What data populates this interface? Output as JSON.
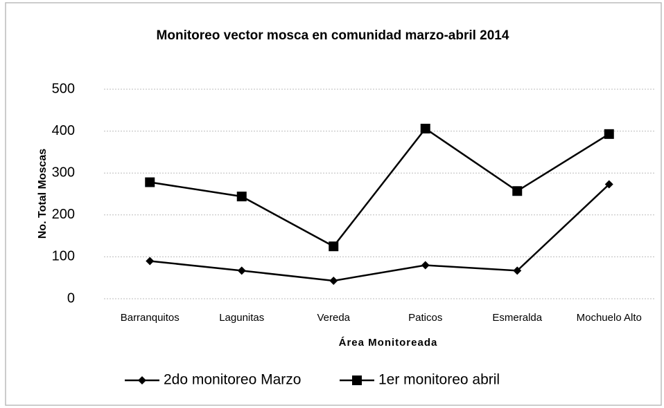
{
  "chart_data": {
    "type": "line",
    "title": "Monitoreo vector mosca en comunidad marzo-abril 2014",
    "x_label": "Área Monitoreada",
    "y_label": "No. Total Moscas",
    "categories": [
      "Barranquitos",
      "Lagunitas",
      "Vereda",
      "Paticos",
      "Esmeralda",
      "Mochuelo Alto"
    ],
    "series": [
      {
        "name": "2do monitoreo Marzo",
        "color": "#000000",
        "marker": "diamond",
        "values": [
          90,
          67,
          43,
          80,
          67,
          273
        ]
      },
      {
        "name": "1er monitoreo abril",
        "color": "#000000",
        "marker": "square",
        "values": [
          278,
          244,
          125,
          406,
          257,
          393
        ]
      }
    ],
    "ylim": [
      0,
      500
    ],
    "yticks": [
      0,
      100,
      200,
      300,
      400,
      500
    ],
    "grid": true,
    "legend": "bottom"
  }
}
